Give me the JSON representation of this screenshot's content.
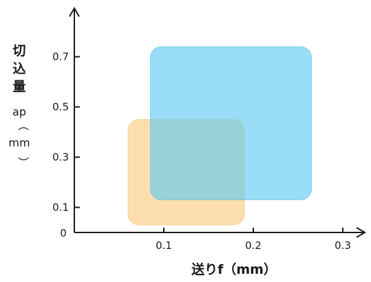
{
  "chart_data": {
    "type": "area",
    "xlabel": "送りf（mm）",
    "ylabel_main": "切込量",
    "ylabel_unit": [
      "ap",
      "（",
      "mm",
      "）"
    ],
    "x_ticks": [
      "0.1",
      "0.2",
      "0.3"
    ],
    "y_ticks": [
      "0.1",
      "0.3",
      "0.5",
      "0.7"
    ],
    "origin_label": "0",
    "xlim": [
      0,
      0.3
    ],
    "ylim": [
      0,
      0.8
    ],
    "regions": [
      {
        "x": [
          0.06,
          0.19
        ],
        "y": [
          0.03,
          0.45
        ],
        "color": "#fcc87a"
      },
      {
        "x": [
          0.085,
          0.265
        ],
        "y": [
          0.13,
          0.74
        ],
        "color": "#55c8f0"
      }
    ]
  }
}
